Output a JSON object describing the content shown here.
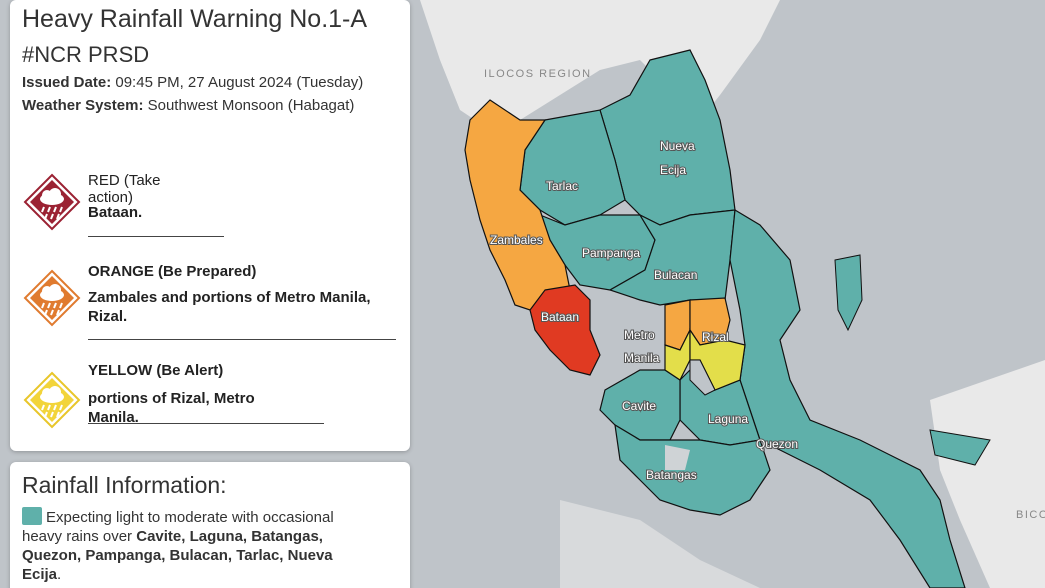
{
  "warning": {
    "title": "Heavy Rainfall Warning No.1-A",
    "tag": "#NCR PRSD",
    "issued_label": "Issued Date:",
    "issued_value": "09:45 PM, 27 August 2024 (Tuesday)",
    "system_label": "Weather System:",
    "system_value": "Southwest Monsoon (Habagat)"
  },
  "levels": [
    {
      "name": "RED (Take action)",
      "areas": "Bataan.",
      "color": "#c0392b",
      "icon": "rain-cloud-icon"
    },
    {
      "name": "ORANGE (Be Prepared)",
      "areas": "Zambales and portions of Metro Manila, Rizal.",
      "color": "#e07b2f",
      "icon": "rain-cloud-icon"
    },
    {
      "name": "YELLOW (Be Alert)",
      "areas": "portions of Rizal, Metro Manila.",
      "color": "#f2d43a",
      "icon": "rain-cloud-icon"
    }
  ],
  "rainfall": {
    "title": "Rainfall Information:",
    "text_prefix": "Expecting light to moderate with occasional heavy rains over",
    "text_areas": "Cavite, Laguna, Batangas, Quezon, Pampanga, Bulacan, Tarlac, Nueva Ecija",
    "swatch_color": "#5fb0aa"
  },
  "map": {
    "region_labels": [
      "ILOCOS REGION",
      "BICO"
    ],
    "province_labels": [
      "Nueva Ecija",
      "Tarlac",
      "Zambales",
      "Pampanga",
      "Bulacan",
      "Bataan",
      "Metro Manila",
      "Rizal",
      "Cavite",
      "Laguna",
      "Quezon",
      "Batangas"
    ],
    "colors": {
      "teal": "#5fb0aa",
      "orange": "#f5a742",
      "red": "#e03a22",
      "yellow": "#e3de4a",
      "land": "#e9e9e9",
      "sea": "#bfc4c9"
    }
  }
}
